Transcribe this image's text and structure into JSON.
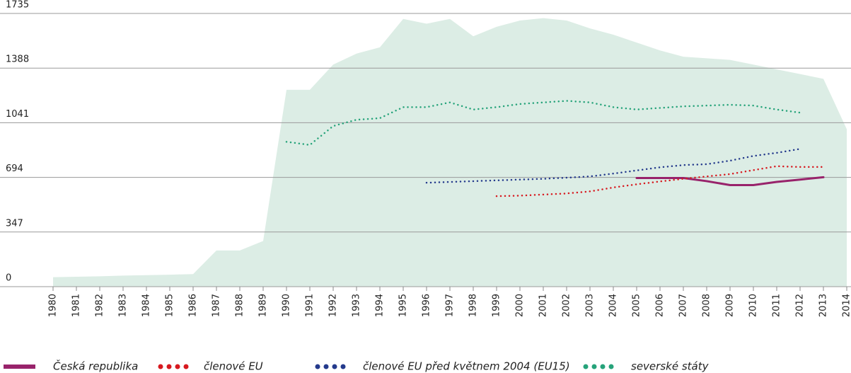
{
  "chart_data": {
    "type": "line",
    "x": [
      1980,
      1981,
      1982,
      1983,
      1984,
      1985,
      1986,
      1987,
      1988,
      1989,
      1990,
      1991,
      1992,
      1993,
      1994,
      1995,
      1996,
      1997,
      1998,
      1999,
      2000,
      2001,
      2002,
      2003,
      2004,
      2005,
      2006,
      2007,
      2008,
      2009,
      2010,
      2011,
      2012,
      2013,
      2014
    ],
    "xlim": [
      1980,
      2014
    ],
    "ylim": [
      0,
      1735
    ],
    "yticks": [
      0,
      347,
      694,
      1041,
      1388,
      1735
    ],
    "grid": true,
    "area": {
      "color": "#dcede5",
      "values": [
        60,
        63,
        66,
        70,
        73,
        76,
        80,
        230,
        230,
        290,
        1250,
        1250,
        1410,
        1480,
        1520,
        1700,
        1670,
        1700,
        1590,
        1650,
        1690,
        1705,
        1690,
        1640,
        1600,
        1550,
        1500,
        1460,
        1450,
        1440,
        1410,
        1380,
        1350,
        1320,
        1000
      ]
    },
    "series": [
      {
        "name": "Česká republika",
        "color": "#98236b",
        "style": "solid",
        "values": [
          null,
          null,
          null,
          null,
          null,
          null,
          null,
          null,
          null,
          null,
          null,
          null,
          null,
          null,
          null,
          null,
          null,
          null,
          null,
          null,
          null,
          null,
          null,
          null,
          null,
          690,
          690,
          690,
          670,
          645,
          645,
          665,
          680,
          695,
          null
        ]
      },
      {
        "name": "členové EU",
        "color": "#d7191f",
        "style": "dotted",
        "values": [
          null,
          null,
          null,
          null,
          null,
          null,
          null,
          null,
          null,
          null,
          null,
          null,
          null,
          null,
          null,
          null,
          null,
          null,
          null,
          575,
          578,
          585,
          592,
          605,
          630,
          650,
          668,
          685,
          700,
          715,
          740,
          765,
          760,
          760,
          null
        ]
      },
      {
        "name": "členové EU před květnem 2004 (EU15)",
        "color": "#243a8c",
        "style": "dotted",
        "values": [
          null,
          null,
          null,
          null,
          null,
          null,
          null,
          null,
          null,
          null,
          null,
          null,
          null,
          null,
          null,
          null,
          660,
          665,
          670,
          675,
          680,
          685,
          692,
          700,
          718,
          738,
          758,
          772,
          778,
          800,
          830,
          850,
          875,
          null,
          null
        ]
      },
      {
        "name": "severské státy",
        "color": "#26a37a",
        "style": "dotted",
        "values": [
          null,
          null,
          null,
          null,
          null,
          null,
          null,
          null,
          null,
          null,
          920,
          900,
          1020,
          1060,
          1070,
          1140,
          1140,
          1170,
          1125,
          1140,
          1160,
          1170,
          1180,
          1170,
          1140,
          1125,
          1135,
          1145,
          1150,
          1155,
          1150,
          1125,
          1105,
          null,
          null
        ]
      }
    ]
  }
}
